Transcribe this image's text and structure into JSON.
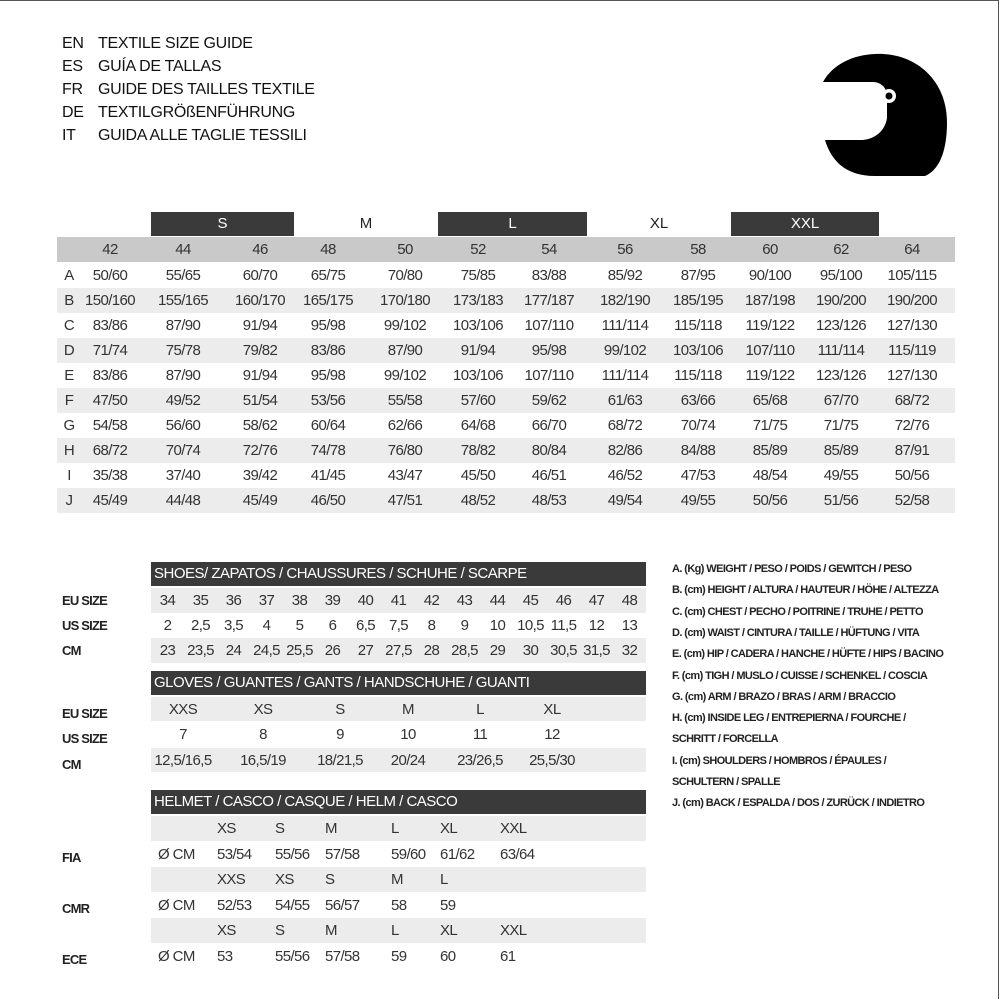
{
  "header": {
    "lines": [
      {
        "code": "EN",
        "text": "TEXTILE SIZE GUIDE"
      },
      {
        "code": "ES",
        "text": "GUÍA DE TALLAS"
      },
      {
        "code": "FR",
        "text": "GUIDE DES TAILLES TEXTILE"
      },
      {
        "code": "DE",
        "text": "TEXTILGRÖßENFÜHRUNG"
      },
      {
        "code": "IT",
        "text": "GUIDA ALLE TAGLIE TESSILI"
      }
    ],
    "icon": "helmet-icon"
  },
  "textile": {
    "letter_sizes": [
      "S",
      "M",
      "L",
      "XL",
      "XXL"
    ],
    "sizes": [
      "42",
      "44",
      "46",
      "48",
      "50",
      "52",
      "54",
      "56",
      "58",
      "60",
      "62",
      "64"
    ],
    "rows": [
      {
        "label": "A",
        "values": [
          "50/60",
          "55/65",
          "60/70",
          "65/75",
          "70/80",
          "75/85",
          "83/88",
          "85/92",
          "87/95",
          "90/100",
          "95/100",
          "105/115"
        ]
      },
      {
        "label": "B",
        "values": [
          "150/160",
          "155/165",
          "160/170",
          "165/175",
          "170/180",
          "173/183",
          "177/187",
          "182/190",
          "185/195",
          "187/198",
          "190/200",
          "190/200"
        ]
      },
      {
        "label": "C",
        "values": [
          "83/86",
          "87/90",
          "91/94",
          "95/98",
          "99/102",
          "103/106",
          "107/110",
          "111/114",
          "115/118",
          "119/122",
          "123/126",
          "127/130"
        ]
      },
      {
        "label": "D",
        "values": [
          "71/74",
          "75/78",
          "79/82",
          "83/86",
          "87/90",
          "91/94",
          "95/98",
          "99/102",
          "103/106",
          "107/110",
          "111/114",
          "115/119"
        ]
      },
      {
        "label": "E",
        "values": [
          "83/86",
          "87/90",
          "91/94",
          "95/98",
          "99/102",
          "103/106",
          "107/110",
          "111/114",
          "115/118",
          "119/122",
          "123/126",
          "127/130"
        ]
      },
      {
        "label": "F",
        "values": [
          "47/50",
          "49/52",
          "51/54",
          "53/56",
          "55/58",
          "57/60",
          "59/62",
          "61/63",
          "63/66",
          "65/68",
          "67/70",
          "68/72"
        ]
      },
      {
        "label": "G",
        "values": [
          "54/58",
          "56/60",
          "58/62",
          "60/64",
          "62/66",
          "64/68",
          "66/70",
          "68/72",
          "70/74",
          "71/75",
          "71/75",
          "72/76"
        ]
      },
      {
        "label": "H",
        "values": [
          "68/72",
          "70/74",
          "72/76",
          "74/78",
          "76/80",
          "78/82",
          "80/84",
          "82/86",
          "84/88",
          "85/89",
          "85/89",
          "87/91"
        ]
      },
      {
        "label": "I",
        "values": [
          "35/38",
          "37/40",
          "39/42",
          "41/45",
          "43/47",
          "45/50",
          "46/51",
          "46/52",
          "47/53",
          "48/54",
          "49/55",
          "50/56"
        ]
      },
      {
        "label": "J",
        "values": [
          "45/49",
          "44/48",
          "45/49",
          "46/50",
          "47/51",
          "48/52",
          "48/53",
          "49/54",
          "49/55",
          "50/56",
          "51/56",
          "52/58"
        ]
      }
    ]
  },
  "shoes": {
    "title": "SHOES/ ZAPATOS / CHAUSSURES / SCHUHE / SCARPE",
    "rows": [
      {
        "label": "EU SIZE",
        "values": [
          "34",
          "35",
          "36",
          "37",
          "38",
          "39",
          "40",
          "41",
          "42",
          "43",
          "44",
          "45",
          "46",
          "47",
          "48"
        ]
      },
      {
        "label": "US SIZE",
        "values": [
          "2",
          "2,5",
          "3,5",
          "4",
          "5",
          "6",
          "6,5",
          "7,5",
          "8",
          "9",
          "10",
          "10,5",
          "11,5",
          "12",
          "13"
        ]
      },
      {
        "label": "CM",
        "values": [
          "23",
          "23,5",
          "24",
          "24,5",
          "25,5",
          "26",
          "27",
          "27,5",
          "28",
          "28,5",
          "29",
          "30",
          "30,5",
          "31,5",
          "32"
        ]
      }
    ]
  },
  "gloves": {
    "title": "GLOVES / GUANTES / GANTS / HANDSCHUHE / GUANTI",
    "rows": [
      {
        "label": "EU SIZE",
        "values": [
          "XXS",
          "XS",
          "S",
          "M",
          "L",
          "XL"
        ]
      },
      {
        "label": "US SIZE",
        "values": [
          "7",
          "8",
          "9",
          "10",
          "11",
          "12"
        ]
      },
      {
        "label": "CM",
        "values": [
          "12,5/16,5",
          "16,5/19",
          "18/21,5",
          "20/24",
          "23/26,5",
          "25,5/30"
        ]
      }
    ]
  },
  "helmet": {
    "title": "HELMET / CASCO / CASQUE / HELM / CASCO",
    "groups": [
      {
        "label": "FIA",
        "unit": "Ø CM",
        "sizes": [
          "XS",
          "S",
          "M",
          "L",
          "XL",
          "XXL"
        ],
        "values": [
          "53/54",
          "55/56",
          "57/58",
          "59/60",
          "61/62",
          "63/64"
        ]
      },
      {
        "label": "CMR",
        "unit": "Ø CM",
        "sizes": [
          "XXS",
          "XS",
          "S",
          "M",
          "L"
        ],
        "values": [
          "52/53",
          "54/55",
          "56/57",
          "58",
          "59"
        ]
      },
      {
        "label": "ECE",
        "unit": "Ø CM",
        "sizes": [
          "XS",
          "S",
          "M",
          "L",
          "XL",
          "XXL"
        ],
        "values": [
          "53",
          "55/56",
          "57/58",
          "59",
          "60",
          "61"
        ]
      }
    ]
  },
  "legend": [
    "A. (Kg) WEIGHT / PESO / POIDS / GEWITCH / PESO",
    "B. (cm) HEIGHT / ALTURA / HAUTEUR / HÖHE / ALTEZZA",
    "C. (cm) CHEST / PECHO / POITRINE / TRUHE / PETTO",
    "D. (cm) WAIST / CINTURA / TAILLE / HÜFTUNG / VITA",
    "E. (cm) HIP / CADERA / HANCHE / HÜFTE / HIPS /  BACINO",
    "F.  (cm) TIGH / MUSLO / CUISSE / SCHENKEL / COSCIA",
    "G. (cm) ARM  / BRAZO / BRAS / ARM / BRACCIO",
    "H. (cm) INSIDE LEG / ENTREPIERNA / FOURCHE /",
    "SCHRITT / FORCELLA",
    "I.  (cm) SHOULDERS / HOMBROS / ÉPAULES /",
    "SCHULTERN / SPALLE",
    "J. (cm) BACK / ESPALDA / DOS / ZURÜCK / INDIETRO"
  ],
  "colors": {
    "dark_bar": "#3a3a3a",
    "header_row": "#c9c9c9",
    "stripe": "#ececec"
  }
}
